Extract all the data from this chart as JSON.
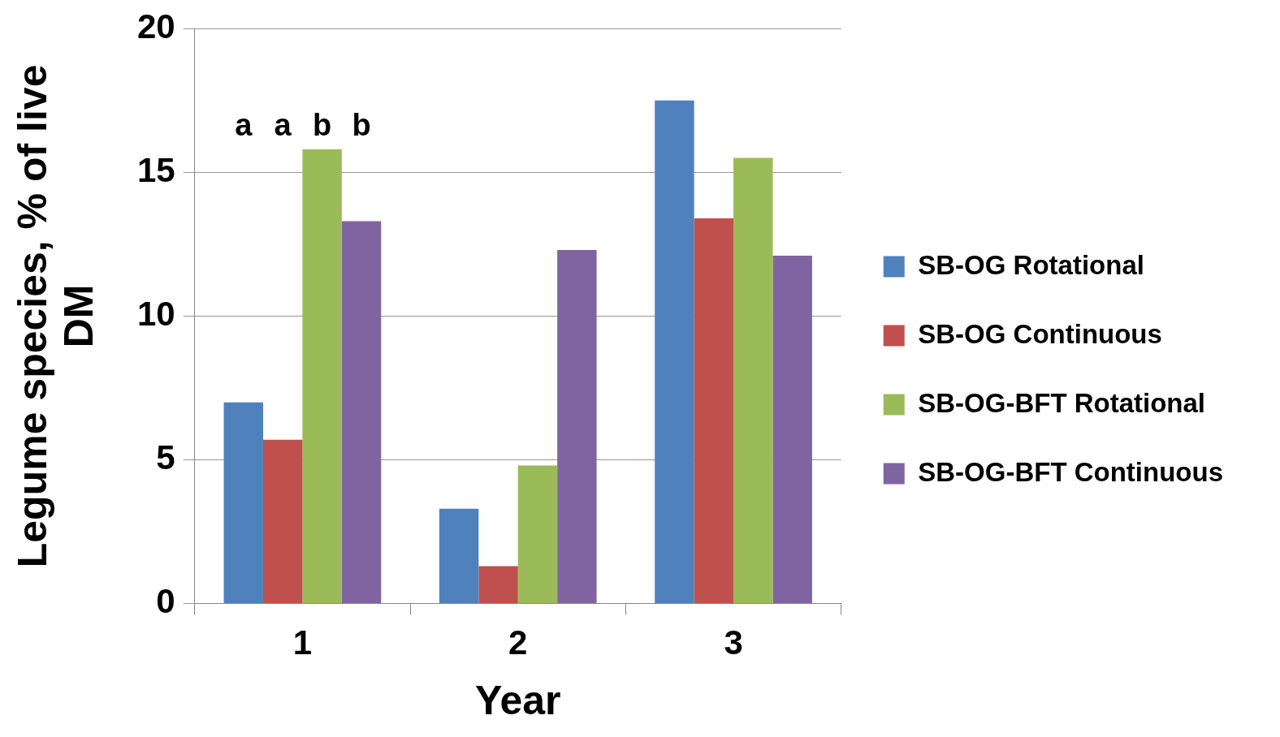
{
  "chart_data": {
    "type": "bar",
    "xlabel": "Year",
    "ylabel": "Legume species, % of live DM",
    "categories": [
      "1",
      "2",
      "3"
    ],
    "series": [
      {
        "name": "SB-OG Rotational",
        "color": "#4f81bd",
        "values": [
          7.0,
          3.3,
          17.5
        ]
      },
      {
        "name": "SB-OG Continuous",
        "color": "#c0504d",
        "values": [
          5.7,
          1.3,
          13.4
        ]
      },
      {
        "name": "SB-OG-BFT Rotational",
        "color": "#9bbb59",
        "values": [
          15.8,
          4.8,
          15.5
        ]
      },
      {
        "name": "SB-OG-BFT Continuous",
        "color": "#8064a2",
        "values": [
          13.3,
          12.3,
          12.1
        ]
      }
    ],
    "ylim": [
      0,
      20
    ],
    "yticks": [
      0,
      5,
      10,
      15,
      20
    ],
    "grid": "y",
    "legend": "right",
    "annotations": [
      "a",
      "a",
      "b",
      "b"
    ]
  }
}
